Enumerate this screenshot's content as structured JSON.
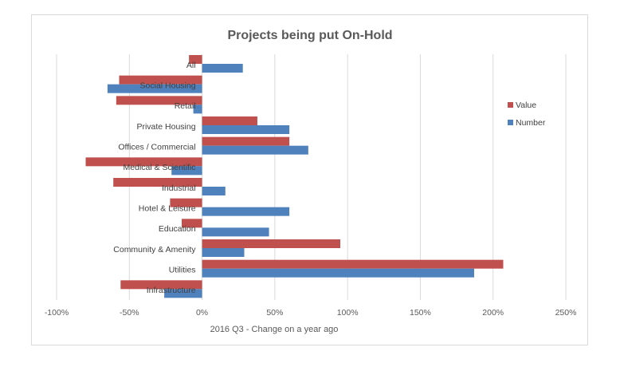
{
  "chart_data": {
    "type": "bar",
    "orientation": "horizontal",
    "title": "Projects being put On-Hold",
    "xlabel": "2016 Q3 - Change on a year ago",
    "ylabel": "",
    "xlim": [
      -100,
      250
    ],
    "xticks": [
      -100,
      -50,
      0,
      50,
      100,
      150,
      200,
      250
    ],
    "xtick_labels": [
      "-100%",
      "-50%",
      "0%",
      "50%",
      "100%",
      "150%",
      "200%",
      "250%"
    ],
    "categories": [
      "All",
      "Social Housing",
      "Retail",
      "Private Housing",
      "Offices / Commercial",
      "Medical & Scientific",
      "Industrial",
      "Hotel & Leisure",
      "Education",
      "Community & Amenity",
      "Utilities",
      "Infrastructure"
    ],
    "series": [
      {
        "name": "Value",
        "color": "#c0504d",
        "values": [
          -9,
          -57,
          -59,
          38,
          60,
          -80,
          -61,
          -22,
          -14,
          95,
          207,
          -56
        ]
      },
      {
        "name": "Number",
        "color": "#4f81bd",
        "values": [
          28,
          -65,
          -6,
          60,
          73,
          -21,
          16,
          60,
          46,
          29,
          187,
          -26
        ]
      }
    ],
    "grid": true,
    "legend_position": "right"
  }
}
